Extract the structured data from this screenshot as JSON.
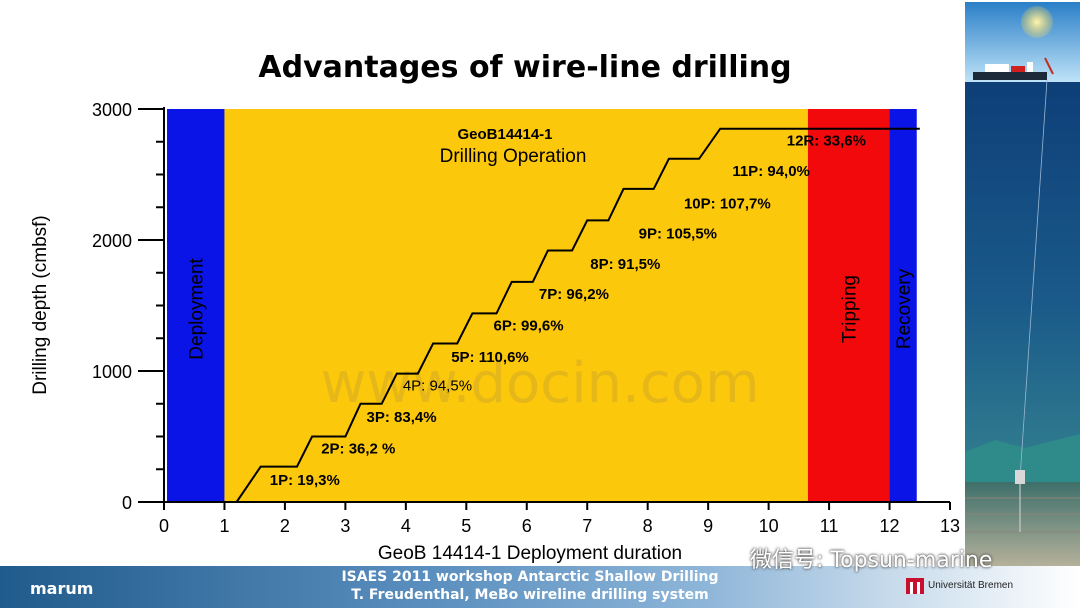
{
  "slide": {
    "title": "Advantages of wire-line drilling"
  },
  "chart_data": {
    "type": "step-line",
    "title": "GeoB14414-1",
    "subtitle": "Drilling Operation",
    "xlabel": "GeoB 14414-1 Deployment duration",
    "ylabel": "Drilling depth (cmbsf)",
    "xlim": [
      0,
      13
    ],
    "ylim": [
      0,
      3000
    ],
    "x_ticks": [
      "0",
      "1",
      "2",
      "3",
      "4",
      "5",
      "6",
      "7",
      "8",
      "9",
      "10",
      "11",
      "12",
      "13"
    ],
    "y_ticks": [
      "0",
      "1000",
      "2000",
      "3000"
    ],
    "phases": [
      {
        "label": "Deployment",
        "x_start": 0.05,
        "x_end": 1.0,
        "color": "#0a14e6"
      },
      {
        "label": "",
        "x_start": 1.0,
        "x_end": 10.65,
        "color": "#fcc80c"
      },
      {
        "label": "Tripping",
        "x_start": 10.65,
        "x_end": 12.0,
        "color": "#f2090c"
      },
      {
        "label": "Recovery",
        "x_start": 12.0,
        "x_end": 12.45,
        "color": "#0a14e6"
      }
    ],
    "series": [
      {
        "points": [
          [
            1.2,
            0
          ],
          [
            1.6,
            270
          ],
          [
            2.2,
            270
          ],
          [
            2.45,
            500
          ],
          [
            3.0,
            500
          ],
          [
            3.25,
            750
          ],
          [
            3.6,
            750
          ],
          [
            3.85,
            980
          ],
          [
            4.2,
            980
          ],
          [
            4.45,
            1210
          ],
          [
            4.85,
            1210
          ],
          [
            5.1,
            1440
          ],
          [
            5.5,
            1440
          ],
          [
            5.75,
            1680
          ],
          [
            6.1,
            1680
          ],
          [
            6.35,
            1920
          ],
          [
            6.75,
            1920
          ],
          [
            7.0,
            2150
          ],
          [
            7.35,
            2150
          ],
          [
            7.6,
            2390
          ],
          [
            8.1,
            2390
          ],
          [
            8.35,
            2620
          ],
          [
            8.85,
            2620
          ],
          [
            9.2,
            2850
          ],
          [
            12.5,
            2850
          ]
        ]
      }
    ],
    "annotations": [
      {
        "text": "1P: 19,3%",
        "x": 1.75,
        "y": 130,
        "bold": true
      },
      {
        "text": "2P: 36,2 %",
        "x": 2.6,
        "y": 370,
        "bold": true
      },
      {
        "text": "3P: 83,4%",
        "x": 3.35,
        "y": 610,
        "bold": true
      },
      {
        "text": "4P: 94,5%",
        "x": 3.95,
        "y": 850,
        "bold": false
      },
      {
        "text": "5P: 110,6%",
        "x": 4.75,
        "y": 1070,
        "bold": true
      },
      {
        "text": "6P: 99,6%",
        "x": 5.45,
        "y": 1310,
        "bold": true
      },
      {
        "text": "7P: 96,2%",
        "x": 6.2,
        "y": 1550,
        "bold": true
      },
      {
        "text": "8P: 91,5%",
        "x": 7.05,
        "y": 1780,
        "bold": true
      },
      {
        "text": "9P: 105,5%",
        "x": 7.85,
        "y": 2010,
        "bold": true
      },
      {
        "text": "10P: 107,7%",
        "x": 8.6,
        "y": 2240,
        "bold": true
      },
      {
        "text": "11P: 94,0%",
        "x": 9.4,
        "y": 2490,
        "bold": true
      },
      {
        "text": "12R: 33,6%",
        "x": 10.3,
        "y": 2720,
        "bold": true
      }
    ],
    "grid": false,
    "legend": "none"
  },
  "watermarks": {
    "site": "www.docin.com",
    "wechat": "微信号: Topsun-marine"
  },
  "footer": {
    "logo": "marum",
    "line1": "ISAES 2011 workshop Antarctic Shallow Drilling",
    "line2": "T. Freudenthal, MeBo wireline drilling system",
    "university": "Universität Bremen"
  },
  "colors": {
    "deployment": "#0a14e6",
    "drilling": "#fcc80c",
    "tripping": "#f2090c",
    "footer": "#1f5b8c"
  }
}
